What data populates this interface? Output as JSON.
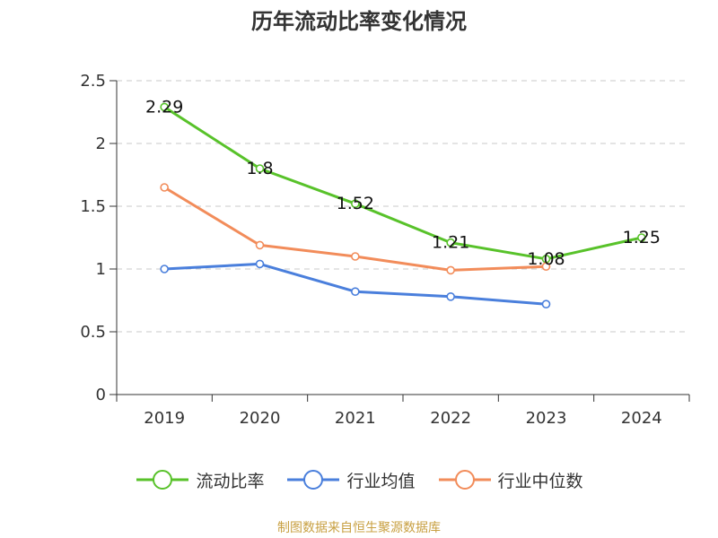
{
  "chart_data": {
    "type": "line",
    "title": "历年流动比率变化情况",
    "categories": [
      "2019",
      "2020",
      "2021",
      "2022",
      "2023",
      "2024"
    ],
    "ylim": [
      0,
      2.5
    ],
    "yticks": [
      "0",
      "0.5",
      "1",
      "1.5",
      "2",
      "2.5"
    ],
    "grid": true,
    "legend_position": "bottom",
    "series": [
      {
        "name": "流动比率",
        "color": "#58c22a",
        "values": [
          2.29,
          1.8,
          1.52,
          1.21,
          1.08,
          1.25
        ],
        "labels": [
          "2.29",
          "1.8",
          "1.52",
          "1.21",
          "1.08",
          "1.25"
        ]
      },
      {
        "name": "行业均值",
        "color": "#4a7fdc",
        "values": [
          1.0,
          1.04,
          0.82,
          0.78,
          0.72,
          null
        ]
      },
      {
        "name": "行业中位数",
        "color": "#f28c5a",
        "values": [
          1.65,
          1.19,
          1.1,
          0.99,
          1.02,
          null
        ]
      }
    ]
  },
  "source": "制图数据来自恒生聚源数据库"
}
